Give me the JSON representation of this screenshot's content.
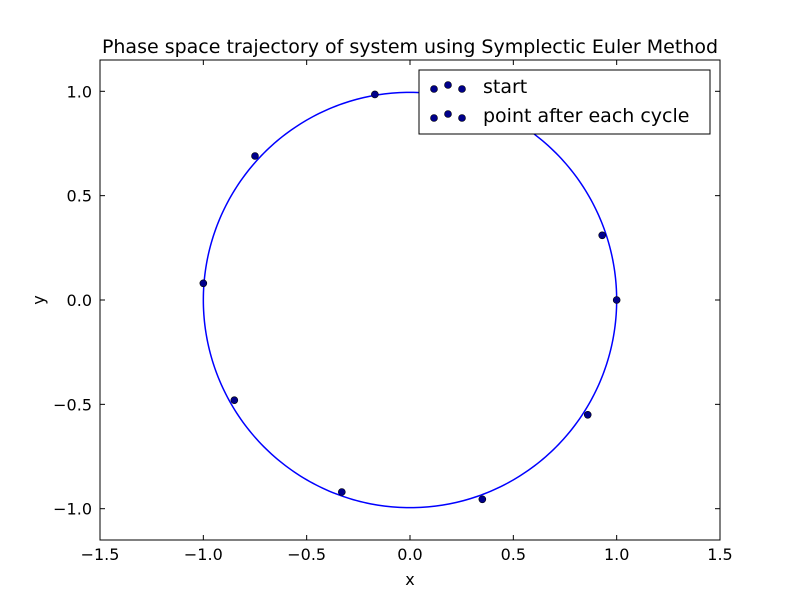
{
  "chart_data": {
    "type": "scatter",
    "title": "Phase space trajectory of system using Symplectic Euler Method",
    "xlabel": "x",
    "ylabel": "y",
    "xlim": [
      -1.5,
      1.5
    ],
    "ylim": [
      -1.15,
      1.15
    ],
    "xticks": [
      -1.5,
      -1.0,
      -0.5,
      0.0,
      0.5,
      1.0,
      1.5
    ],
    "xtick_labels": [
      "−1.5",
      "−1.0",
      "−0.5",
      "0.0",
      "0.5",
      "1.0",
      "1.5"
    ],
    "yticks": [
      -1.0,
      -0.5,
      0.0,
      0.5,
      1.0
    ],
    "ytick_labels": [
      "−1.0",
      "−0.5",
      "0.0",
      "0.5",
      "1.0"
    ],
    "grid": false,
    "legend_position": "top-right",
    "colors": {
      "trajectory": "#0000ff",
      "points": "#00008b",
      "axes": "#000000"
    },
    "series": [
      {
        "name": "start",
        "kind": "scatter",
        "points": [
          [
            1.0,
            0.0
          ]
        ]
      },
      {
        "name": "point after each cycle",
        "kind": "scatter",
        "points": [
          [
            0.93,
            0.31
          ],
          [
            -0.17,
            0.985
          ],
          [
            -0.75,
            0.69
          ],
          [
            -1.0,
            0.08
          ],
          [
            -0.85,
            -0.48
          ],
          [
            -0.33,
            -0.92
          ],
          [
            0.35,
            -0.955
          ],
          [
            0.86,
            -0.55
          ]
        ]
      },
      {
        "kind": "line",
        "shape": "ellipse",
        "semi_axis_major": 1.0,
        "semi_axis_minor": 0.995,
        "tilt_degrees": -3
      }
    ]
  }
}
